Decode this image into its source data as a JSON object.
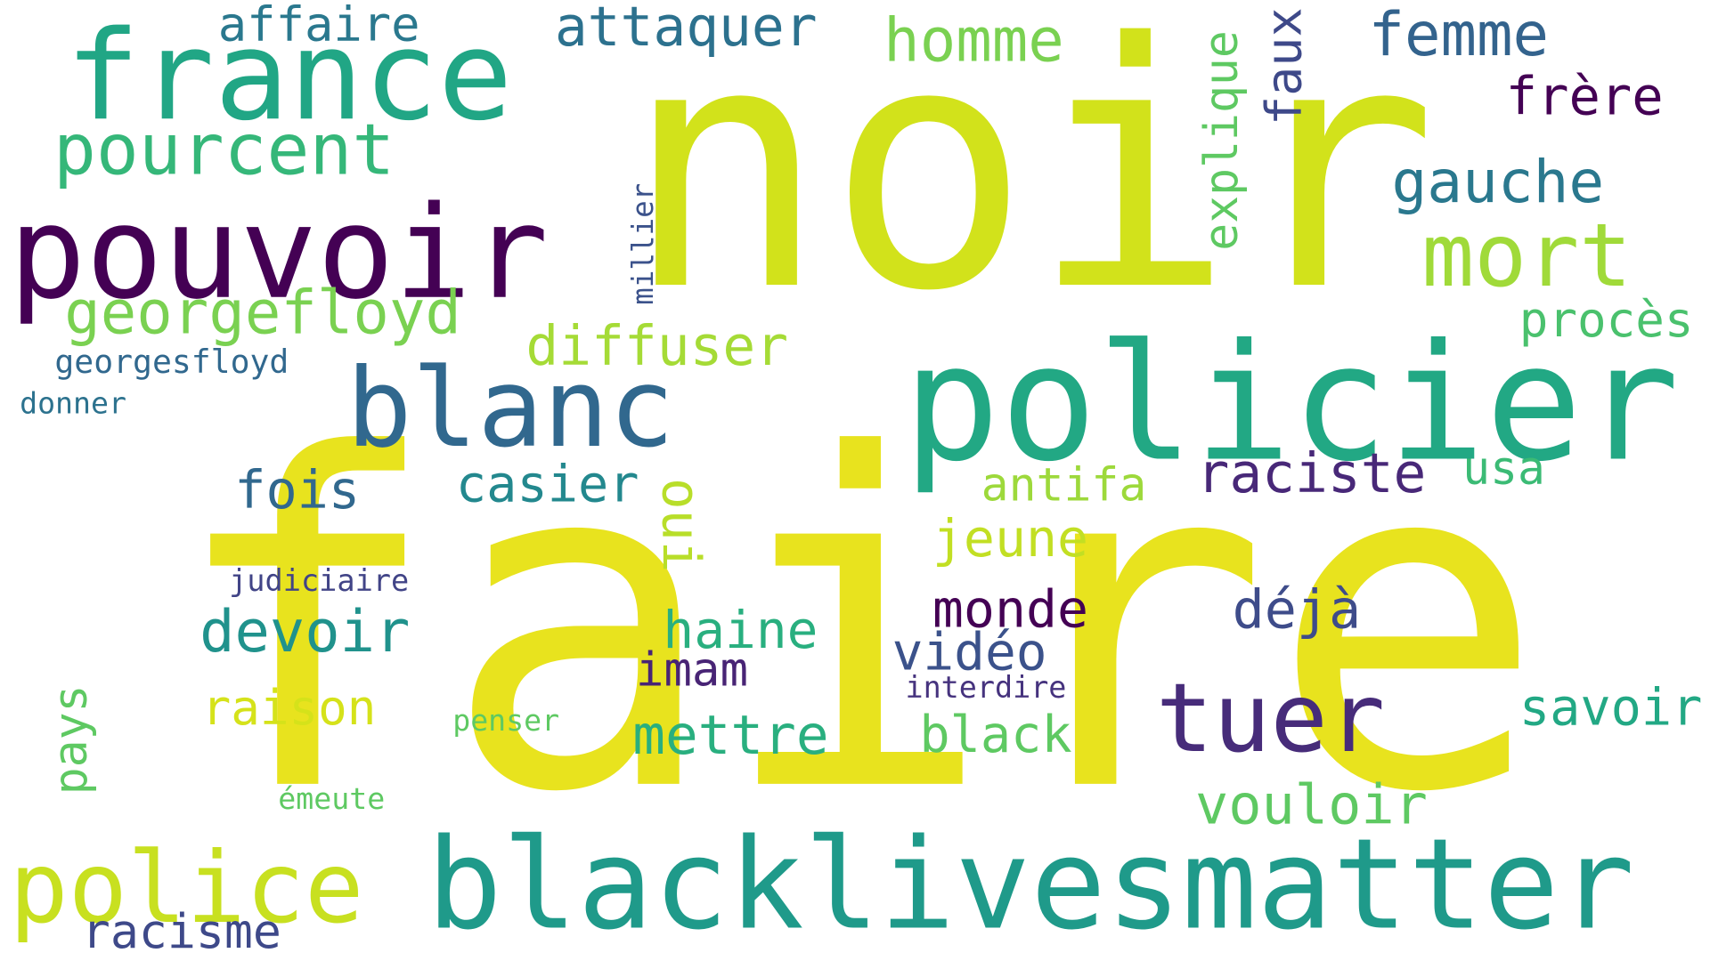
{
  "words": [
    {
      "id": "faire",
      "text": "faire",
      "color": "#e8e31e"
    },
    {
      "id": "noir",
      "text": "noir",
      "color": "#d2e21b"
    },
    {
      "id": "policier",
      "text": "policier",
      "color": "#22a884"
    },
    {
      "id": "blacklivesmatter",
      "text": "blacklivesmatter",
      "color": "#1f9a8a"
    },
    {
      "id": "france",
      "text": "france",
      "color": "#21a685"
    },
    {
      "id": "pouvoir",
      "text": "pouvoir",
      "color": "#440154"
    },
    {
      "id": "blanc",
      "text": "blanc",
      "color": "#31688e"
    },
    {
      "id": "police",
      "text": "police",
      "color": "#c8e020"
    },
    {
      "id": "tuer",
      "text": "tuer",
      "color": "#472c7a"
    },
    {
      "id": "mort",
      "text": "mort",
      "color": "#a0da39"
    },
    {
      "id": "pourcent",
      "text": "pourcent",
      "color": "#35b779"
    },
    {
      "id": "georgefloyd",
      "text": "georgefloyd",
      "color": "#7ad151"
    },
    {
      "id": "homme",
      "text": "homme",
      "color": "#7ad151"
    },
    {
      "id": "attaquer",
      "text": "attaquer",
      "color": "#2c718e"
    },
    {
      "id": "femme",
      "text": "femme",
      "color": "#33638d"
    },
    {
      "id": "affaire",
      "text": "affaire",
      "color": "#2a788e"
    },
    {
      "id": "faux",
      "text": "faux",
      "color": "#3e4989"
    },
    {
      "id": "explique",
      "text": "explique",
      "color": "#5ec962"
    },
    {
      "id": "frere",
      "text": "frère",
      "color": "#440154"
    },
    {
      "id": "gauche",
      "text": "gauche",
      "color": "#2a788e"
    },
    {
      "id": "millier",
      "text": "millier",
      "color": "#3b528b"
    },
    {
      "id": "diffuser",
      "text": "diffuser",
      "color": "#a5db36"
    },
    {
      "id": "proces",
      "text": "procès",
      "color": "#4ac16d"
    },
    {
      "id": "georgesfloyd",
      "text": "georgesfloyd",
      "color": "#31688e"
    },
    {
      "id": "donner",
      "text": "donner",
      "color": "#2c728e"
    },
    {
      "id": "raciste",
      "text": "raciste",
      "color": "#482878"
    },
    {
      "id": "usa",
      "text": "usa",
      "color": "#3bbb75"
    },
    {
      "id": "antifa",
      "text": "antifa",
      "color": "#9dd93b"
    },
    {
      "id": "oui",
      "text": "oui",
      "color": "#b8de29"
    },
    {
      "id": "casier",
      "text": "casier",
      "color": "#23888e"
    },
    {
      "id": "fois",
      "text": "fois",
      "color": "#31688e"
    },
    {
      "id": "jeune",
      "text": "jeune",
      "color": "#c2df23"
    },
    {
      "id": "judiciaire",
      "text": "judiciaire",
      "color": "#414487"
    },
    {
      "id": "monde",
      "text": "monde",
      "color": "#440154"
    },
    {
      "id": "deja",
      "text": "déjà",
      "color": "#3e4c8a"
    },
    {
      "id": "devoir",
      "text": "devoir",
      "color": "#20928c"
    },
    {
      "id": "haine",
      "text": "haine",
      "color": "#29af7f"
    },
    {
      "id": "video",
      "text": "vidéo",
      "color": "#3b528b"
    },
    {
      "id": "imam",
      "text": "imam",
      "color": "#482475"
    },
    {
      "id": "interdire",
      "text": "interdire",
      "color": "#46337e"
    },
    {
      "id": "savoir",
      "text": "savoir",
      "color": "#22a884"
    },
    {
      "id": "pays",
      "text": "pays",
      "color": "#5ec962"
    },
    {
      "id": "raison",
      "text": "raison",
      "color": "#d5e21a"
    },
    {
      "id": "penser",
      "text": "penser",
      "color": "#5ec962"
    },
    {
      "id": "mettre",
      "text": "mettre",
      "color": "#29af7f"
    },
    {
      "id": "black",
      "text": "black",
      "color": "#5ec962"
    },
    {
      "id": "vouloir",
      "text": "vouloir",
      "color": "#5ec962"
    },
    {
      "id": "emeute",
      "text": "émeute",
      "color": "#5ec962"
    },
    {
      "id": "racisme",
      "text": "racisme",
      "color": "#3e4989"
    }
  ]
}
